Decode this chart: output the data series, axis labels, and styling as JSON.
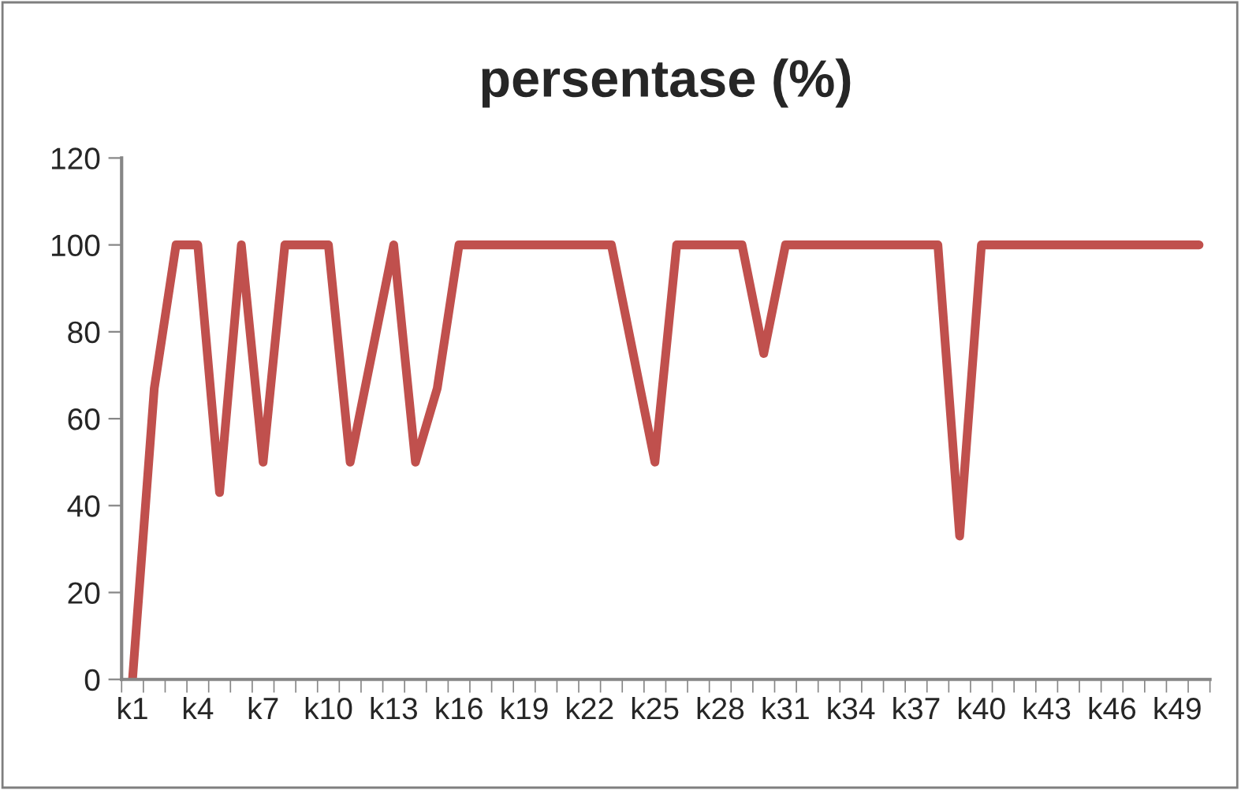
{
  "chart_data": {
    "type": "line",
    "title": "persentase (%)",
    "categories": [
      "k1",
      null,
      null,
      "k4",
      null,
      null,
      "k7",
      null,
      null,
      "k10",
      null,
      null,
      "k13",
      null,
      null,
      "k16",
      null,
      null,
      "k19",
      null,
      null,
      "k22",
      null,
      null,
      "k25",
      null,
      null,
      "k28",
      null,
      null,
      "k31",
      null,
      null,
      "k34",
      null,
      null,
      "k37",
      null,
      null,
      "k40",
      null,
      null,
      "k43",
      null,
      null,
      "k46",
      null,
      null,
      "k49",
      null
    ],
    "series": [
      {
        "color": "#c0504d",
        "values": [
          0,
          67,
          100,
          100,
          43,
          100,
          50,
          100,
          100,
          100,
          50,
          75,
          100,
          50,
          67,
          100,
          100,
          100,
          100,
          100,
          100,
          100,
          100,
          75,
          50,
          100,
          100,
          100,
          100,
          75,
          100,
          100,
          100,
          100,
          100,
          100,
          100,
          100,
          33,
          100,
          100,
          100,
          100,
          100,
          100,
          100,
          100,
          100,
          100,
          100
        ]
      }
    ],
    "ylim": [
      0,
      120
    ],
    "yticks": [
      0,
      20,
      40,
      60,
      80,
      100,
      120
    ],
    "grid": false,
    "legend": false,
    "marker": "none",
    "line_style": "solid"
  }
}
